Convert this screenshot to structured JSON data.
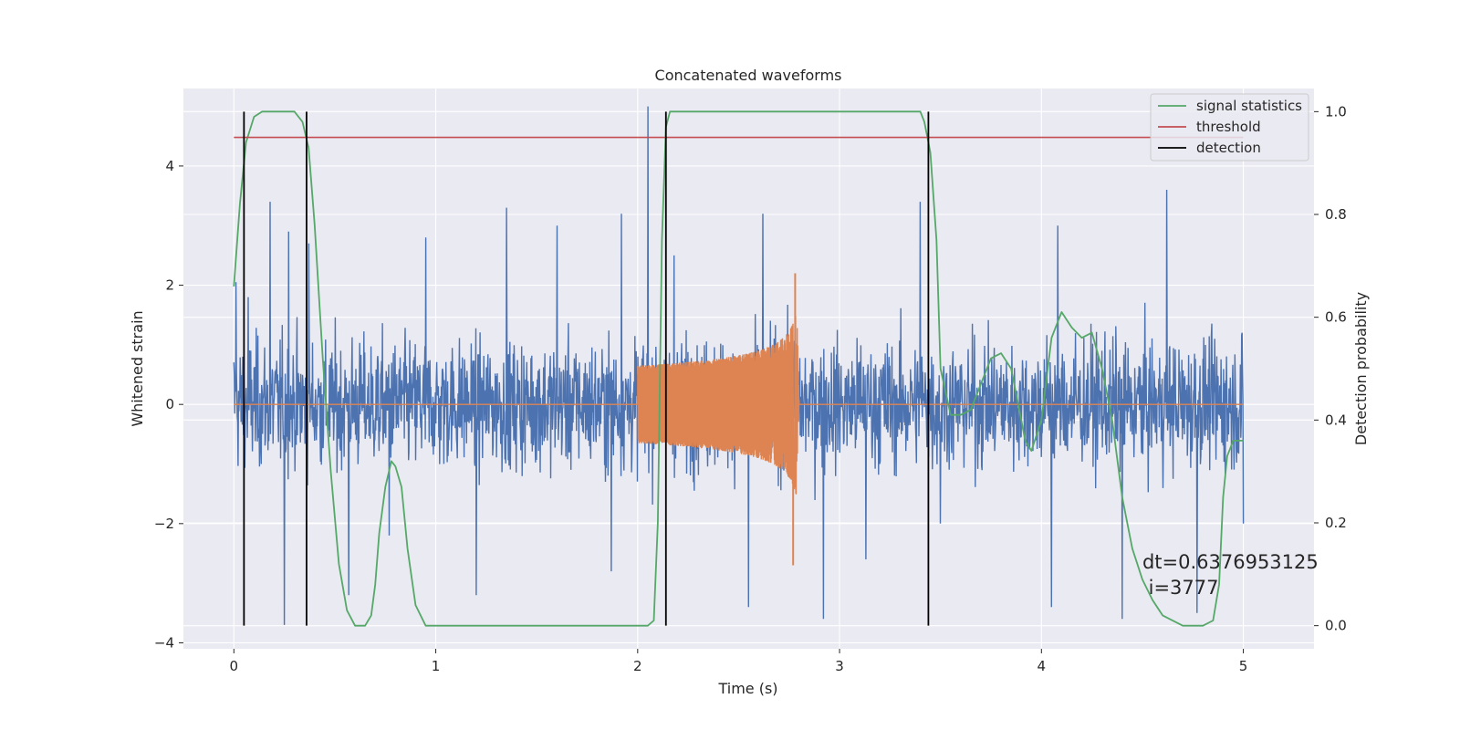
{
  "chart_data": {
    "type": "line",
    "title": "Concatenated waveforms",
    "xlabel": "Time (s)",
    "ylabel": "Whitened strain",
    "y2label": "Detection probability",
    "xlim": [
      -0.25,
      5.35
    ],
    "ylim": [
      -4.1,
      5.3
    ],
    "y2lim": [
      -0.045,
      1.045
    ],
    "xticks": [
      0,
      1,
      2,
      3,
      4,
      5
    ],
    "yticks": [
      -4,
      -2,
      0,
      2,
      4
    ],
    "y2ticks": [
      0.0,
      0.2,
      0.4,
      0.6,
      0.8,
      1.0
    ],
    "xtick_labels": [
      "0",
      "1",
      "2",
      "3",
      "4",
      "5"
    ],
    "ytick_labels": [
      "−4",
      "−2",
      "0",
      "2",
      "4"
    ],
    "y2tick_labels": [
      "0.0",
      "0.2",
      "0.4",
      "0.6",
      "0.8",
      "1.0"
    ],
    "grid": true,
    "background": "#eaeaf2",
    "legend_position": "top-right",
    "colors": {
      "noise": "#4c72b0",
      "waveform": "#dd8452",
      "signal_statistics": "#55a868",
      "threshold": "#c44e52",
      "detection": "#000000"
    },
    "legend": [
      "signal statistics",
      "threshold",
      "detection"
    ],
    "series": [
      {
        "name": "",
        "axis": "left",
        "role": "whitened noise",
        "x_range": [
          0,
          5
        ],
        "peaks": [
          [
            0.01,
            2.05
          ],
          [
            0.07,
            1.8
          ],
          [
            0.18,
            3.4
          ],
          [
            0.25,
            -3.7
          ],
          [
            0.27,
            2.9
          ],
          [
            0.37,
            2.7
          ],
          [
            0.57,
            -3.2
          ],
          [
            0.77,
            -2.2
          ],
          [
            0.95,
            2.8
          ],
          [
            1.2,
            -3.2
          ],
          [
            1.35,
            3.3
          ],
          [
            1.6,
            3.0
          ],
          [
            1.87,
            -2.8
          ],
          [
            1.92,
            3.2
          ],
          [
            2.05,
            5.0
          ],
          [
            2.18,
            2.5
          ],
          [
            2.55,
            -3.4
          ],
          [
            2.62,
            3.2
          ],
          [
            2.92,
            -3.6
          ],
          [
            3.13,
            -2.6
          ],
          [
            3.4,
            3.4
          ],
          [
            3.5,
            -2.0
          ],
          [
            4.05,
            -3.4
          ],
          [
            4.08,
            3.0
          ],
          [
            4.4,
            -3.6
          ],
          [
            4.62,
            3.6
          ],
          [
            4.77,
            -3.5
          ],
          [
            5.0,
            -2.0
          ]
        ],
        "typical_range": [
          -2.2,
          2.2
        ]
      },
      {
        "name": "",
        "axis": "left",
        "role": "injected chirp",
        "chirp_start": 2.0,
        "chirp_end": 2.8,
        "start_amplitude": 0.65,
        "peak_values": [
          2.2,
          -2.7
        ]
      },
      {
        "name": "signal statistics",
        "axis": "right",
        "x": [
          0.0,
          0.03,
          0.06,
          0.1,
          0.14,
          0.3,
          0.34,
          0.37,
          0.4,
          0.44,
          0.48,
          0.52,
          0.56,
          0.6,
          0.65,
          0.68,
          0.7,
          0.72,
          0.75,
          0.78,
          0.8,
          0.83,
          0.86,
          0.9,
          0.95,
          1.0,
          2.05,
          2.08,
          2.1,
          2.12,
          2.14,
          2.16,
          2.2,
          3.4,
          3.42,
          3.45,
          3.48,
          3.5,
          3.55,
          3.6,
          3.65,
          3.7,
          3.75,
          3.8,
          3.85,
          3.88,
          3.92,
          3.95,
          4.0,
          4.05,
          4.1,
          4.15,
          4.2,
          4.25,
          4.3,
          4.35,
          4.4,
          4.45,
          4.5,
          4.55,
          4.6,
          4.7,
          4.8,
          4.85,
          4.88,
          4.9,
          4.92,
          4.95,
          5.0
        ],
        "values": [
          0.66,
          0.82,
          0.94,
          0.99,
          1.0,
          1.0,
          0.98,
          0.93,
          0.78,
          0.52,
          0.3,
          0.12,
          0.03,
          0.0,
          0.0,
          0.02,
          0.08,
          0.18,
          0.27,
          0.32,
          0.31,
          0.27,
          0.15,
          0.04,
          0.0,
          0.0,
          0.0,
          0.01,
          0.2,
          0.75,
          0.97,
          1.0,
          1.0,
          1.0,
          0.98,
          0.92,
          0.75,
          0.5,
          0.41,
          0.41,
          0.42,
          0.47,
          0.52,
          0.53,
          0.5,
          0.44,
          0.36,
          0.34,
          0.4,
          0.56,
          0.61,
          0.58,
          0.56,
          0.57,
          0.5,
          0.4,
          0.25,
          0.15,
          0.09,
          0.05,
          0.02,
          0.0,
          0.0,
          0.01,
          0.08,
          0.25,
          0.33,
          0.36,
          0.36
        ]
      },
      {
        "name": "threshold",
        "axis": "right",
        "x": [
          0,
          5
        ],
        "values": [
          0.95,
          0.95
        ]
      },
      {
        "name": "detection",
        "axis": "right",
        "type": "vlines",
        "x": [
          0.05,
          0.36,
          2.14,
          3.44
        ],
        "ymin": 0.0,
        "ymax": 1.0
      }
    ],
    "annotations": [
      {
        "text": "dt=0.6376953125",
        "x": 4.5,
        "y": -2.75
      },
      {
        "text": " i=3777",
        "x": 4.5,
        "y": -3.18
      }
    ]
  }
}
